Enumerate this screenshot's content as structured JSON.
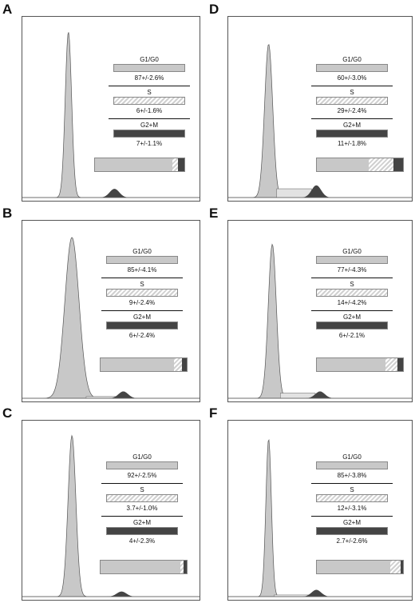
{
  "legend_labels": {
    "g1": "G1/G0",
    "s": "S",
    "g2": "G2+M"
  },
  "colors": {
    "g1_fill": "#c8c8c8",
    "s_pattern": "#d0d0d0",
    "g2_fill": "#444444",
    "frame": "#555555"
  },
  "chart_data": [
    {
      "type": "area",
      "panel": "A",
      "g1_pct": "87+/-2.6%",
      "s_pct": "6+/-1.6%",
      "g2_pct": "7+/-1.1%",
      "composition": [
        87,
        6,
        7
      ],
      "peaks": {
        "g1_pos": 0.26,
        "g1_height": 0.95,
        "g1_width": 0.018,
        "g2_pos": 0.52,
        "g2_height": 0.05,
        "s_level": 0.0
      }
    },
    {
      "type": "area",
      "panel": "B",
      "g1_pct": "85+/-4.1%",
      "s_pct": "9+/-2.4%",
      "g2_pct": "6+/-2.4%",
      "composition": [
        85,
        9,
        6
      ],
      "peaks": {
        "g1_pos": 0.28,
        "g1_height": 0.94,
        "g1_width": 0.04,
        "g2_pos": 0.57,
        "g2_height": 0.04,
        "s_level": 0.01
      }
    },
    {
      "type": "area",
      "panel": "C",
      "g1_pct": "92+/-2.5%",
      "s_pct": "3.7+/-1.0%",
      "g2_pct": "4+/-2.3%",
      "composition": [
        92,
        3.7,
        4
      ],
      "peaks": {
        "g1_pos": 0.28,
        "g1_height": 0.95,
        "g1_width": 0.022,
        "g2_pos": 0.56,
        "g2_height": 0.03,
        "s_level": 0.0
      }
    },
    {
      "type": "area",
      "panel": "D",
      "g1_pct": "60+/-3.0%",
      "s_pct": "29+/-2.4%",
      "g2_pct": "11+/-1.8%",
      "composition": [
        60,
        29,
        11
      ],
      "peaks": {
        "g1_pos": 0.22,
        "g1_height": 0.88,
        "g1_width": 0.022,
        "g2_pos": 0.48,
        "g2_height": 0.07,
        "s_level": 0.05
      }
    },
    {
      "type": "area",
      "panel": "E",
      "g1_pct": "77+/-4.3%",
      "s_pct": "14+/-4.2%",
      "g2_pct": "6+/-2.1%",
      "composition": [
        77,
        14,
        6
      ],
      "peaks": {
        "g1_pos": 0.24,
        "g1_height": 0.9,
        "g1_width": 0.022,
        "g2_pos": 0.5,
        "g2_height": 0.04,
        "s_level": 0.03
      }
    },
    {
      "type": "area",
      "panel": "F",
      "g1_pct": "85+/-3.8%",
      "s_pct": "12+/-3.1%",
      "g2_pct": "2.7+/-2.6%",
      "composition": [
        85,
        12,
        2.7
      ],
      "peaks": {
        "g1_pos": 0.22,
        "g1_height": 0.93,
        "g1_width": 0.015,
        "g2_pos": 0.48,
        "g2_height": 0.04,
        "s_level": 0.01
      }
    }
  ]
}
